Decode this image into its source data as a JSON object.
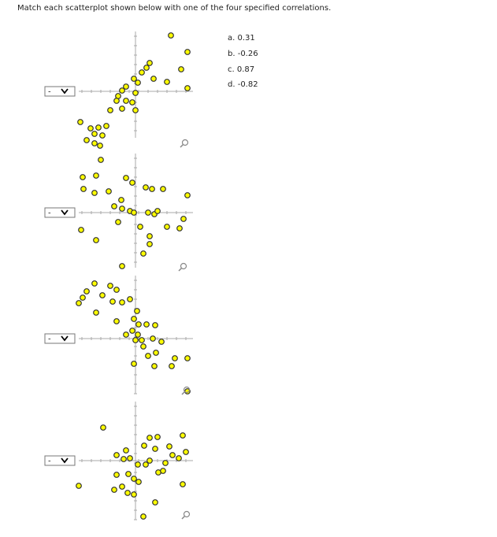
{
  "instruction": "Match each scatterplot shown below with one of the four specified correlations.",
  "options": [
    "a. 0.31",
    "b. -0.26",
    "c. 0.87",
    "d. -0.82"
  ],
  "selects": [
    "-",
    "-",
    "-",
    "-"
  ]
}
